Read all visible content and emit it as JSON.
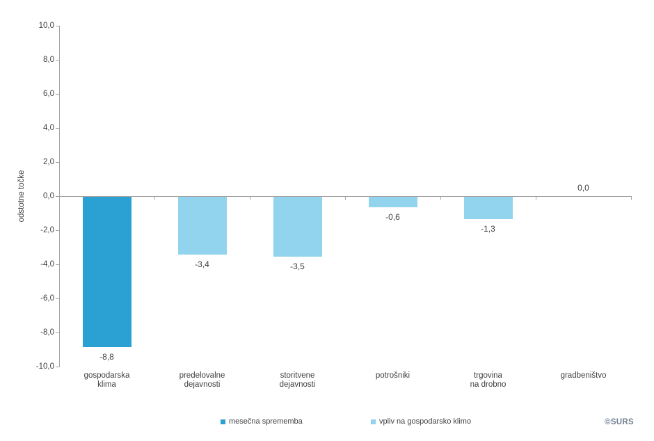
{
  "source": "©SURS",
  "y_axis": {
    "tick_labels": [
      "10,0",
      "8,0",
      "6,0",
      "4,0",
      "2,0",
      "0,0",
      "-2,0",
      "-4,0",
      "-6,0",
      "-8,0",
      "-10,0"
    ]
  },
  "chart_data": {
    "type": "bar",
    "title": "",
    "xlabel": "",
    "ylabel": "odstotne točke",
    "ylim": [
      -10,
      10
    ],
    "y_tick_step": 2,
    "grid": false,
    "legend_position": "bottom",
    "categories": [
      "gospodarska klima",
      "predelovalne dejavnosti",
      "storitvene dejavnosti",
      "potrošniki",
      "trgovina na drobno",
      "gradbeništvo"
    ],
    "category_label_lines": [
      [
        "gospodarska",
        "klima"
      ],
      [
        "predelovalne",
        "dejavnosti"
      ],
      [
        "storitvene",
        "dejavnosti"
      ],
      [
        "potrošniki"
      ],
      [
        "trgovina",
        "na drobno"
      ],
      [
        "gradbeništvo"
      ]
    ],
    "series": [
      {
        "name": "mesečna sprememba",
        "color": "#2AA1D2",
        "values": [
          -8.8,
          null,
          null,
          null,
          null,
          null
        ]
      },
      {
        "name": "vpliv na gospodarsko klimo",
        "color": "#92D3ED",
        "values": [
          null,
          -3.4,
          -3.5,
          -0.6,
          -1.3,
          0.0
        ]
      }
    ],
    "value_labels": [
      "-8,8",
      "-3,4",
      "-3,5",
      "-0,6",
      "-1,3",
      "0,0"
    ]
  }
}
